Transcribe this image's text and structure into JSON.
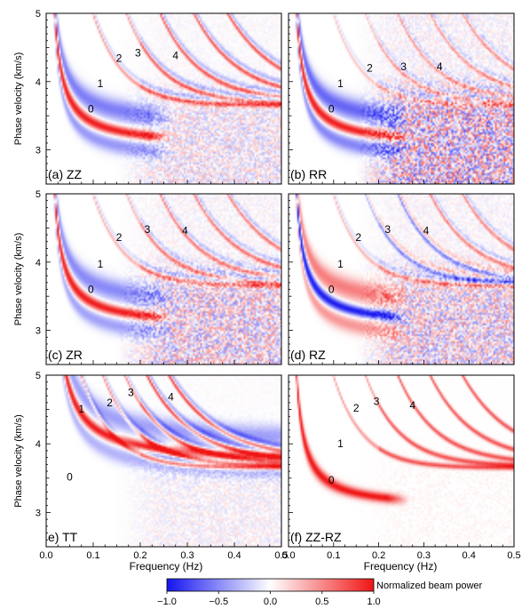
{
  "figure": {
    "shared_xlabel": "Frequency (Hz)",
    "shared_ylabel": "Phase velocity (km/s)",
    "x_ticks": [
      "0.0",
      "0.1",
      "0.2",
      "0.3",
      "0.4",
      "0.5"
    ],
    "y_ticks": [
      "3",
      "4",
      "5"
    ]
  },
  "colorbar": {
    "label": "Normalized beam power",
    "ticks": [
      "−1.0",
      "−0.5",
      "0.0",
      "0.5",
      "1.0"
    ],
    "colors": {
      "negative": "#1414f0",
      "zero": "#ffffff",
      "positive": "#f01414"
    }
  },
  "chart_data": [
    {
      "type": "heatmap",
      "panel_label": "(a) ZZ",
      "xlabel": "",
      "ylabel": "Phase velocity (km/s)",
      "xlim": [
        0.0,
        0.5
      ],
      "ylim": [
        2.5,
        5.0
      ],
      "clim": [
        -1.0,
        1.0
      ],
      "mode_labels": [
        {
          "text": "0",
          "x": 0.095,
          "y": 3.6
        },
        {
          "text": "1",
          "x": 0.115,
          "y": 3.97
        },
        {
          "text": "2",
          "x": 0.155,
          "y": 4.34
        },
        {
          "text": "3",
          "x": 0.195,
          "y": 4.42
        },
        {
          "text": "4",
          "x": 0.275,
          "y": 4.38
        }
      ]
    },
    {
      "type": "heatmap",
      "panel_label": "(b) RR",
      "xlabel": "",
      "ylabel": "",
      "xlim": [
        0.0,
        0.5
      ],
      "ylim": [
        2.5,
        5.0
      ],
      "clim": [
        -1.0,
        1.0
      ],
      "mode_labels": [
        {
          "text": "0",
          "x": 0.095,
          "y": 3.6
        },
        {
          "text": "1",
          "x": 0.115,
          "y": 3.97
        },
        {
          "text": "2",
          "x": 0.18,
          "y": 4.2
        },
        {
          "text": "3",
          "x": 0.255,
          "y": 4.22
        },
        {
          "text": "4",
          "x": 0.335,
          "y": 4.22
        }
      ]
    },
    {
      "type": "heatmap",
      "panel_label": "(c) ZR",
      "xlabel": "",
      "ylabel": "Phase velocity (km/s)",
      "xlim": [
        0.0,
        0.5
      ],
      "ylim": [
        2.5,
        5.0
      ],
      "clim": [
        -1.0,
        1.0
      ],
      "mode_labels": [
        {
          "text": "0",
          "x": 0.095,
          "y": 3.6
        },
        {
          "text": "1",
          "x": 0.115,
          "y": 3.97
        },
        {
          "text": "2",
          "x": 0.155,
          "y": 4.36
        },
        {
          "text": "3",
          "x": 0.215,
          "y": 4.48
        },
        {
          "text": "4",
          "x": 0.295,
          "y": 4.46
        }
      ]
    },
    {
      "type": "heatmap",
      "panel_label": "(d) RZ",
      "xlabel": "",
      "ylabel": "",
      "xlim": [
        0.0,
        0.5
      ],
      "ylim": [
        2.5,
        5.0
      ],
      "clim": [
        -1.0,
        1.0
      ],
      "mode_labels": [
        {
          "text": "0",
          "x": 0.095,
          "y": 3.6
        },
        {
          "text": "1",
          "x": 0.115,
          "y": 3.97
        },
        {
          "text": "2",
          "x": 0.155,
          "y": 4.36
        },
        {
          "text": "3",
          "x": 0.22,
          "y": 4.48
        },
        {
          "text": "4",
          "x": 0.305,
          "y": 4.46
        }
      ]
    },
    {
      "type": "heatmap",
      "panel_label": "e) TT",
      "xlabel": "Frequency (Hz)",
      "ylabel": "Phase velocity (km/s)",
      "xlim": [
        0.0,
        0.5
      ],
      "ylim": [
        2.5,
        5.0
      ],
      "clim": [
        -1.0,
        1.0
      ],
      "mode_labels": [
        {
          "text": "0",
          "x": 0.05,
          "y": 3.52
        },
        {
          "text": "1",
          "x": 0.075,
          "y": 4.51
        },
        {
          "text": "2",
          "x": 0.135,
          "y": 4.6
        },
        {
          "text": "3",
          "x": 0.18,
          "y": 4.75
        },
        {
          "text": "4",
          "x": 0.265,
          "y": 4.68
        }
      ]
    },
    {
      "type": "heatmap",
      "panel_label": "(f) ZZ-RZ",
      "xlabel": "Frequency (Hz)",
      "ylabel": "",
      "xlim": [
        0.0,
        0.5
      ],
      "ylim": [
        2.5,
        5.0
      ],
      "clim": [
        -1.0,
        1.0
      ],
      "mode_labels": [
        {
          "text": "0",
          "x": 0.095,
          "y": 3.47
        },
        {
          "text": "1",
          "x": 0.115,
          "y": 4.0
        },
        {
          "text": "2",
          "x": 0.15,
          "y": 4.52
        },
        {
          "text": "3",
          "x": 0.195,
          "y": 4.62
        },
        {
          "text": "4",
          "x": 0.275,
          "y": 4.56
        }
      ]
    }
  ]
}
